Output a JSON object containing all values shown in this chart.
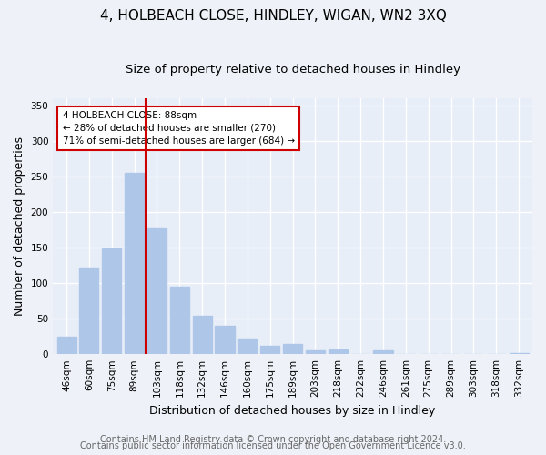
{
  "title": "4, HOLBEACH CLOSE, HINDLEY, WIGAN, WN2 3XQ",
  "subtitle": "Size of property relative to detached houses in Hindley",
  "xlabel": "Distribution of detached houses by size in Hindley",
  "ylabel": "Number of detached properties",
  "bar_labels": [
    "46sqm",
    "60sqm",
    "75sqm",
    "89sqm",
    "103sqm",
    "118sqm",
    "132sqm",
    "146sqm",
    "160sqm",
    "175sqm",
    "189sqm",
    "203sqm",
    "218sqm",
    "232sqm",
    "246sqm",
    "261sqm",
    "275sqm",
    "289sqm",
    "303sqm",
    "318sqm",
    "332sqm"
  ],
  "bar_values": [
    24,
    122,
    149,
    255,
    177,
    95,
    54,
    40,
    22,
    12,
    14,
    5,
    6,
    0,
    5,
    0,
    0,
    0,
    0,
    0,
    2
  ],
  "bar_color": "#aec6e8",
  "vline_x": 3.5,
  "vline_color": "#cc0000",
  "ylim": [
    0,
    360
  ],
  "yticks": [
    0,
    50,
    100,
    150,
    200,
    250,
    300,
    350
  ],
  "annotation_text": "4 HOLBEACH CLOSE: 88sqm\n← 28% of detached houses are smaller (270)\n71% of semi-detached houses are larger (684) →",
  "annotation_box_color": "#ffffff",
  "annotation_box_edgecolor": "#cc0000",
  "footer_line1": "Contains HM Land Registry data © Crown copyright and database right 2024.",
  "footer_line2": "Contains public sector information licensed under the Open Government Licence v3.0.",
  "background_color": "#eef2f8",
  "plot_bg_color": "#e8eef8",
  "grid_color": "#ffffff",
  "title_fontsize": 11,
  "subtitle_fontsize": 9.5,
  "axis_label_fontsize": 9,
  "tick_fontsize": 7.5,
  "footer_fontsize": 7
}
